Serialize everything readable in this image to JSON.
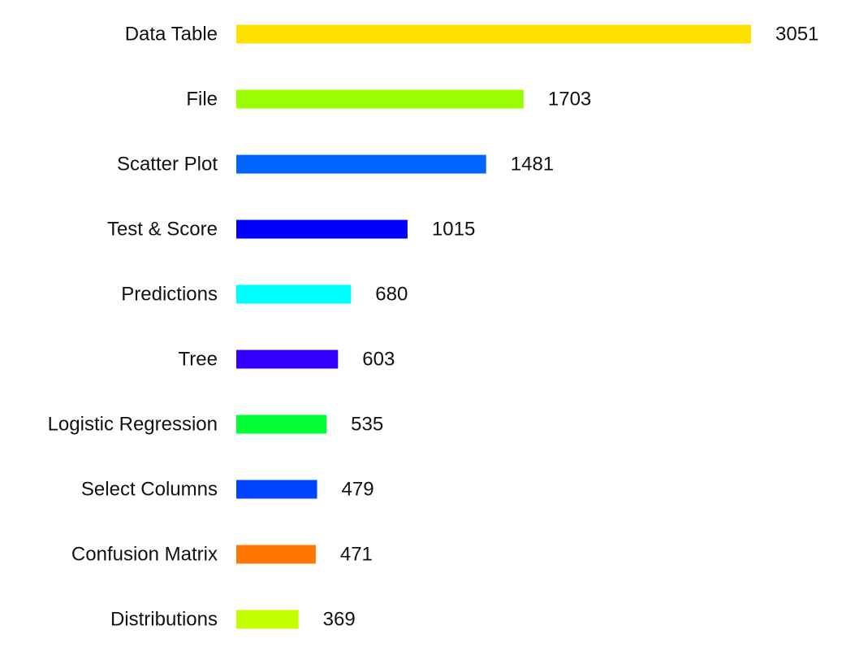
{
  "chart_data": {
    "type": "bar",
    "orientation": "horizontal",
    "title": "",
    "xlabel": "",
    "ylabel": "",
    "grid": false,
    "legend": "none",
    "xlim": [
      0,
      3051
    ],
    "categories": [
      "Data Table",
      "File",
      "Scatter Plot",
      "Test & Score",
      "Predictions",
      "Tree",
      "Logistic Regression",
      "Select Columns",
      "Confusion Matrix",
      "Distributions"
    ],
    "values": [
      3051,
      1703,
      1481,
      1015,
      680,
      603,
      535,
      479,
      471,
      369
    ],
    "value_labels": [
      "3051",
      "1703",
      "1481",
      "1015",
      "680",
      "603",
      "535",
      "479",
      "471",
      "369"
    ],
    "colors": [
      "#ffe100",
      "#99ff00",
      "#0066ff",
      "#0000ff",
      "#00ffff",
      "#3300ff",
      "#00ff33",
      "#0044ff",
      "#ff7700",
      "#c2ff00"
    ]
  }
}
